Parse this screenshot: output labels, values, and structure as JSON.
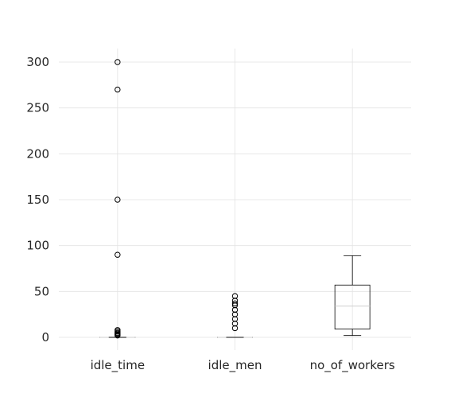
{
  "chart_data": {
    "type": "box",
    "title": "",
    "xlabel": "",
    "ylabel": "",
    "categories": [
      "idle_time",
      "idle_men",
      "no_of_workers"
    ],
    "ylim": [
      -14,
      315
    ],
    "yticks": [
      0,
      50,
      100,
      150,
      200,
      250,
      300
    ],
    "grid": true,
    "boxes": [
      {
        "name": "idle_time",
        "whislo": 0,
        "q1": 0,
        "med": 0,
        "q3": 0,
        "whishi": 0,
        "fliers": [
          2,
          3,
          4,
          5,
          6.5,
          8,
          90,
          150,
          270,
          300
        ]
      },
      {
        "name": "idle_men",
        "whislo": 0,
        "q1": 0,
        "med": 0,
        "q3": 0,
        "whishi": 0,
        "fliers": [
          10,
          15,
          20,
          25,
          30,
          35,
          37,
          40,
          45
        ]
      },
      {
        "name": "no_of_workers",
        "whislo": 2,
        "q1": 9,
        "med": 34,
        "q3": 57,
        "whishi": 89,
        "fliers": []
      }
    ]
  }
}
